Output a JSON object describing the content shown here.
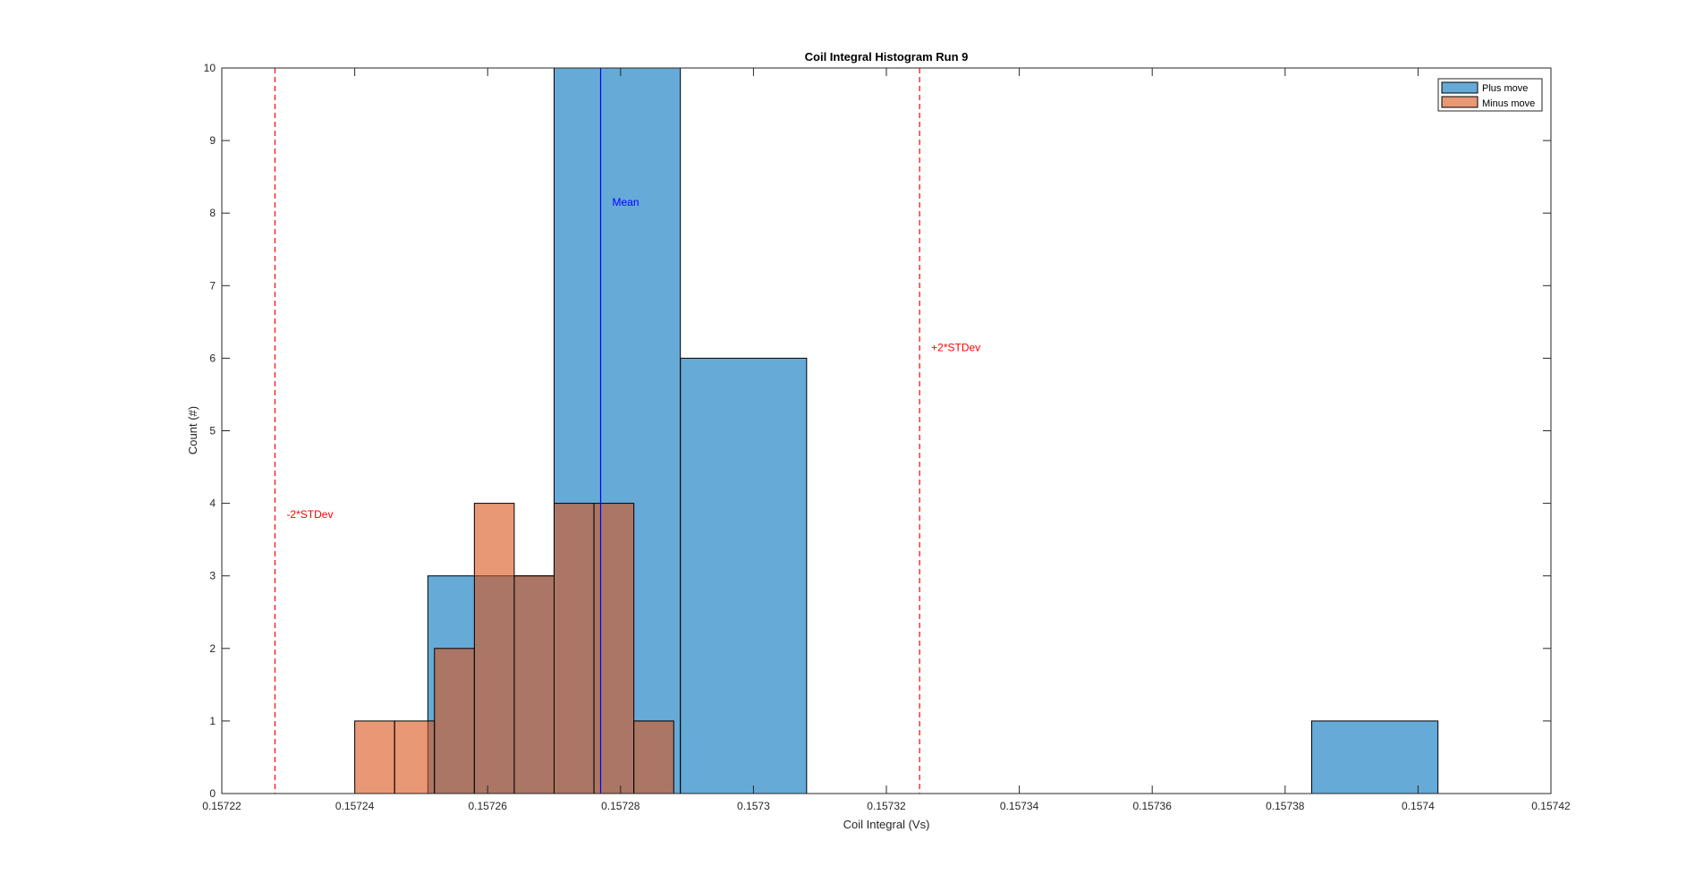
{
  "chart_data": {
    "type": "bar",
    "title": "Coil Integral Histogram Run 9",
    "xlabel": "Coil Integral (Vs)",
    "ylabel": "Count (#)",
    "xlim": [
      0.15722,
      0.15742
    ],
    "ylim": [
      0,
      10
    ],
    "xticks": [
      0.15722,
      0.15724,
      0.15726,
      0.15728,
      0.1573,
      0.15732,
      0.15734,
      0.15736,
      0.15738,
      0.1574,
      0.15742
    ],
    "xtick_labels": [
      "0.15722",
      "0.15724",
      "0.15726",
      "0.15728",
      "0.1573",
      "0.15732",
      "0.15734",
      "0.15736",
      "0.15738",
      "0.1574",
      "0.15742"
    ],
    "yticks": [
      0,
      1,
      2,
      3,
      4,
      5,
      6,
      7,
      8,
      9,
      10
    ],
    "ytick_labels": [
      "0",
      "1",
      "2",
      "3",
      "4",
      "5",
      "6",
      "7",
      "8",
      "9",
      "10"
    ],
    "grid": false,
    "legend_position": "top-right",
    "series": [
      {
        "name": "Plus move",
        "color": "#0072BD",
        "opacity": 0.6,
        "bins": [
          {
            "x0": 0.157251,
            "x1": 0.15727,
            "count": 3
          },
          {
            "x0": 0.15727,
            "x1": 0.157289,
            "count": 10
          },
          {
            "x0": 0.157289,
            "x1": 0.157308,
            "count": 6
          },
          {
            "x0": 0.157308,
            "x1": 0.157327,
            "count": 0
          },
          {
            "x0": 0.157327,
            "x1": 0.157346,
            "count": 0
          },
          {
            "x0": 0.157346,
            "x1": 0.157365,
            "count": 0
          },
          {
            "x0": 0.157365,
            "x1": 0.157384,
            "count": 0
          },
          {
            "x0": 0.157384,
            "x1": 0.157403,
            "count": 1
          }
        ]
      },
      {
        "name": "Minus move",
        "color": "#D95319",
        "opacity": 0.6,
        "bins": [
          {
            "x0": 0.15724,
            "x1": 0.157246,
            "count": 1
          },
          {
            "x0": 0.157246,
            "x1": 0.157252,
            "count": 1
          },
          {
            "x0": 0.157252,
            "x1": 0.157258,
            "count": 2
          },
          {
            "x0": 0.157258,
            "x1": 0.157264,
            "count": 4
          },
          {
            "x0": 0.157264,
            "x1": 0.15727,
            "count": 3
          },
          {
            "x0": 0.15727,
            "x1": 0.157276,
            "count": 4
          },
          {
            "x0": 0.157276,
            "x1": 0.157282,
            "count": 4
          },
          {
            "x0": 0.157282,
            "x1": 0.157288,
            "count": 1
          }
        ]
      }
    ],
    "reference_lines": [
      {
        "label": "Mean",
        "x": 0.157277,
        "color": "#0000FF",
        "style": "solid",
        "label_y": 8.1
      },
      {
        "label": "-2*STDev",
        "x": 0.157228,
        "color": "#FF0000",
        "style": "dashed",
        "label_y": 3.8
      },
      {
        "label": "+2*STDev",
        "x": 0.157325,
        "color": "#FF0000",
        "style": "dashed",
        "label_y": 6.1
      }
    ]
  }
}
